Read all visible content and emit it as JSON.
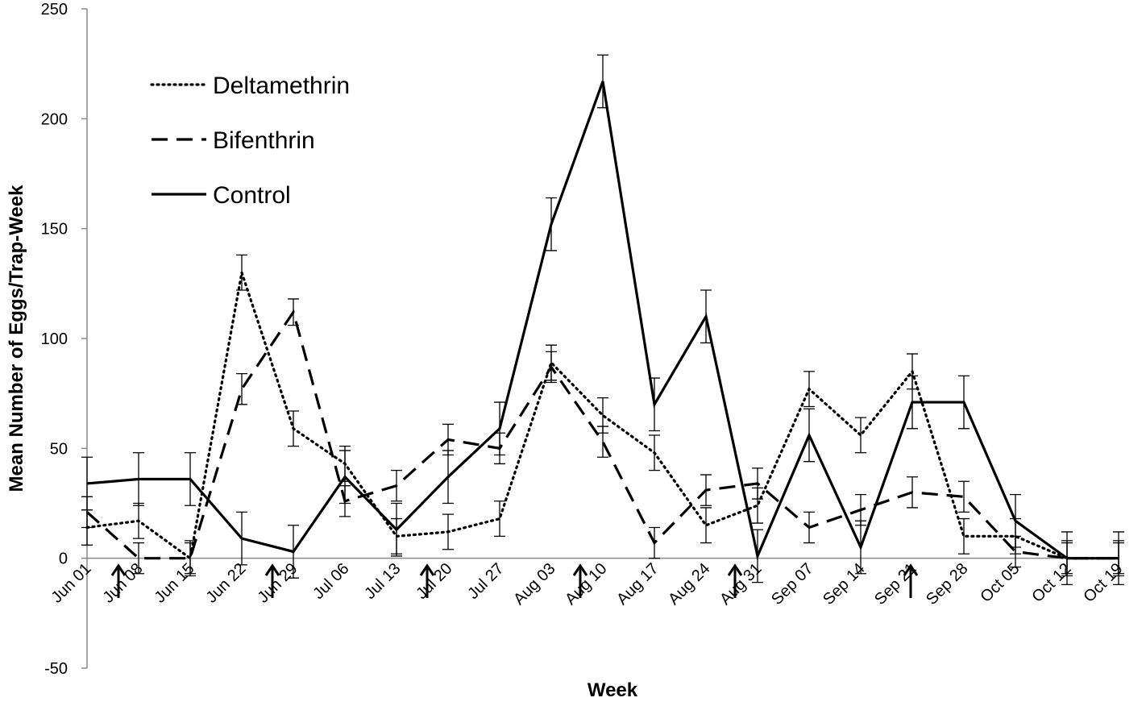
{
  "chart_data": {
    "type": "line",
    "x_label": "Week",
    "y_label": "Mean Number of Eggs/Trap-Week",
    "categories": [
      "Jun 01",
      "Jun 08",
      "Jun 15",
      "Jun 22",
      "Jun 29",
      "Jul 06",
      "Jul 13",
      "Jul 20",
      "Jul 27",
      "Aug 03",
      "Aug 10",
      "Aug 17",
      "Aug 24",
      "Aug 31",
      "Sep 07",
      "Sep 14",
      "Sep 21",
      "Sep 28",
      "Oct 05",
      "Oct 12",
      "Oct 19"
    ],
    "ylim": [
      -50,
      250
    ],
    "yticks": [
      -50,
      0,
      50,
      100,
      150,
      200,
      250
    ],
    "legend": "upper left",
    "series": [
      {
        "name": "Deltamethrin",
        "color": "#000000",
        "dash": "dotted",
        "values": [
          14,
          17,
          0,
          130,
          59,
          43,
          10,
          12,
          18,
          89,
          65,
          48,
          15,
          24,
          77,
          56,
          85,
          10,
          10,
          0,
          0
        ],
        "errors": [
          8,
          8,
          8,
          8,
          8,
          8,
          8,
          8,
          8,
          8,
          8,
          8,
          8,
          8,
          8,
          8,
          8,
          8,
          8,
          8,
          8
        ]
      },
      {
        "name": "Bifenthrin",
        "color": "#000000",
        "dash": "dashed",
        "values": [
          21,
          0,
          0,
          77,
          112,
          26,
          33,
          54,
          50,
          87,
          53,
          7,
          31,
          34,
          14,
          22,
          30,
          28,
          3,
          0,
          0
        ],
        "errors": [
          7,
          7,
          7,
          7,
          6,
          7,
          7,
          7,
          7,
          7,
          7,
          7,
          7,
          7,
          7,
          7,
          7,
          7,
          7,
          7,
          7
        ]
      },
      {
        "name": "Control",
        "color": "#000000",
        "dash": "solid",
        "values": [
          34,
          36,
          36,
          9,
          3,
          37,
          13,
          37,
          59,
          152,
          217,
          70,
          110,
          1,
          56,
          5,
          71,
          71,
          17,
          0,
          0
        ],
        "errors": [
          12,
          12,
          12,
          12,
          12,
          12,
          12,
          12,
          12,
          12,
          12,
          12,
          12,
          12,
          12,
          12,
          12,
          12,
          12,
          12,
          12
        ]
      }
    ]
  }
}
